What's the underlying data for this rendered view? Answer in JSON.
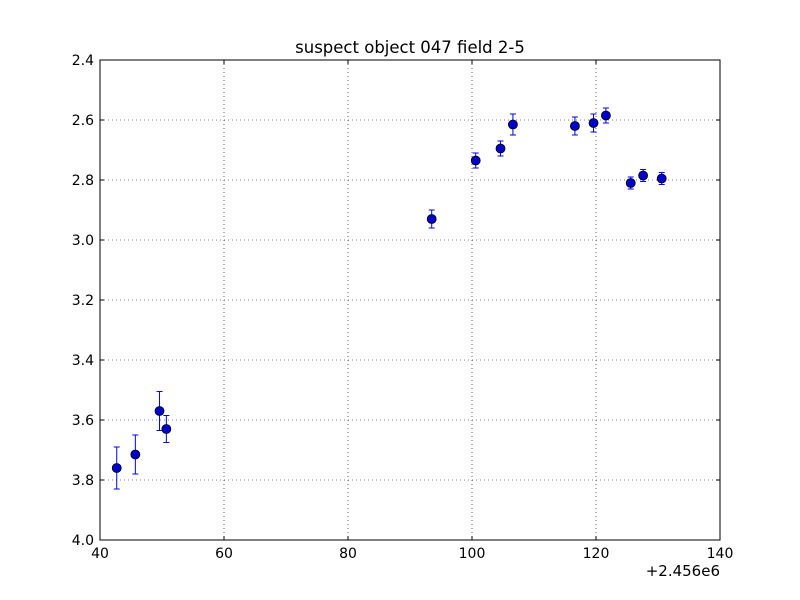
{
  "chart_data": {
    "type": "scatter",
    "title": "suspect object 047 field 2-5",
    "xlabel": "",
    "ylabel": "",
    "x_offset_label": "+2.456e6",
    "xlim": [
      40,
      140
    ],
    "ylim": [
      2.4,
      4.0
    ],
    "y_inverted": true,
    "grid": true,
    "x_ticks": [
      40,
      60,
      80,
      100,
      120,
      140
    ],
    "x_tick_labels": [
      "40",
      "60",
      "80",
      "100",
      "120",
      "140"
    ],
    "y_ticks": [
      2.4,
      2.6,
      2.8,
      3.0,
      3.2,
      3.4,
      3.6,
      3.8,
      4.0
    ],
    "y_tick_labels": [
      "2.4",
      "2.6",
      "2.8",
      "3.0",
      "3.2",
      "3.4",
      "3.6",
      "3.8",
      "4.0"
    ],
    "marker_color": "#0000cc",
    "errorbar_color": "#0000ff",
    "series": [
      {
        "points": [
          {
            "x": 42.7,
            "y": 3.76,
            "yerr": 0.07
          },
          {
            "x": 45.7,
            "y": 3.715,
            "yerr": 0.065
          },
          {
            "x": 49.6,
            "y": 3.57,
            "yerr": 0.065
          },
          {
            "x": 50.7,
            "y": 3.63,
            "yerr": 0.045
          },
          {
            "x": 93.5,
            "y": 2.93,
            "yerr": 0.03
          },
          {
            "x": 100.6,
            "y": 2.735,
            "yerr": 0.025
          },
          {
            "x": 104.6,
            "y": 2.695,
            "yerr": 0.025
          },
          {
            "x": 106.6,
            "y": 2.615,
            "yerr": 0.035
          },
          {
            "x": 116.6,
            "y": 2.62,
            "yerr": 0.03
          },
          {
            "x": 119.6,
            "y": 2.61,
            "yerr": 0.03
          },
          {
            "x": 121.6,
            "y": 2.585,
            "yerr": 0.025
          },
          {
            "x": 125.6,
            "y": 2.81,
            "yerr": 0.02
          },
          {
            "x": 127.6,
            "y": 2.785,
            "yerr": 0.02
          },
          {
            "x": 130.6,
            "y": 2.795,
            "yerr": 0.02
          }
        ]
      }
    ]
  }
}
